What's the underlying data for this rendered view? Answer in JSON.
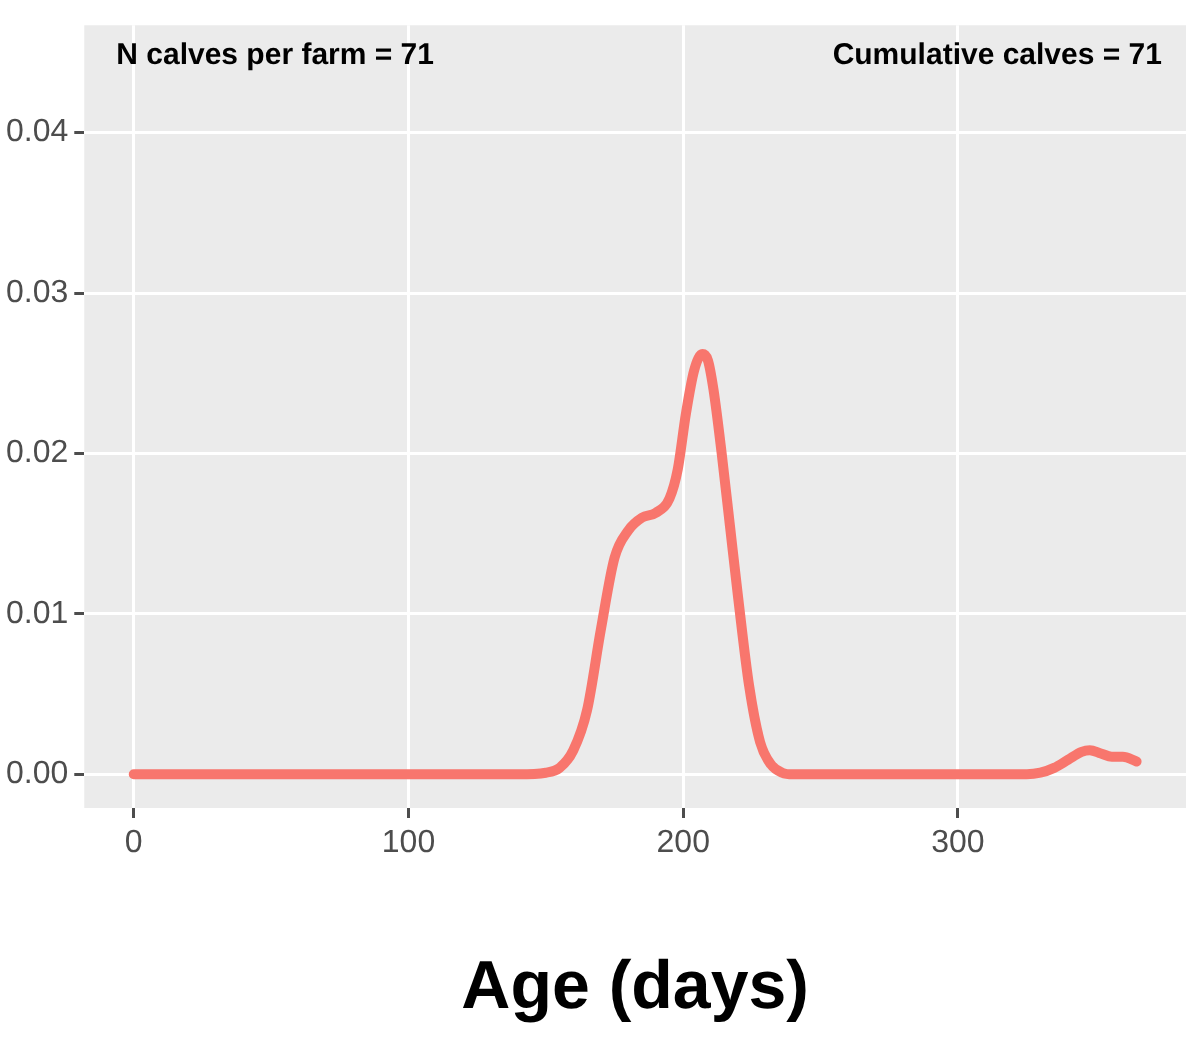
{
  "chart_data": {
    "type": "line",
    "xlabel": "Age (days)",
    "annotations": [
      "N calves per farm = 71",
      "Cumulative calves = 71"
    ],
    "series": [
      {
        "color": "#f8766d",
        "x": [
          0,
          50,
          100,
          140,
          150,
          155,
          160,
          165,
          170,
          175,
          180,
          185,
          190,
          195,
          198,
          201,
          204,
          207,
          209,
          211,
          214,
          217,
          220,
          224,
          228,
          232,
          236,
          240,
          260,
          300,
          325,
          330,
          335,
          340,
          345,
          348,
          352,
          356,
          360,
          365
        ],
        "values": [
          0,
          0,
          0,
          0,
          0.0001,
          0.0004,
          0.0015,
          0.004,
          0.009,
          0.0135,
          0.0152,
          0.016,
          0.0163,
          0.0172,
          0.019,
          0.0225,
          0.0252,
          0.0262,
          0.0258,
          0.024,
          0.02,
          0.0155,
          0.011,
          0.0055,
          0.002,
          0.0006,
          0.0001,
          0,
          0,
          0,
          0,
          0.0001,
          0.0004,
          0.0009,
          0.0014,
          0.0015,
          0.0013,
          0.0011,
          0.0011,
          0.0008
        ]
      }
    ],
    "xlim": [
      -18,
      383
    ],
    "xticks": [
      0,
      100,
      200,
      300
    ],
    "ylim": [
      -0.0021,
      0.0467
    ],
    "yticks": [
      {
        "value": 0,
        "label": "0.00"
      },
      {
        "value": 0.01,
        "label": "0.01"
      },
      {
        "value": 0.02,
        "label": "0.02"
      },
      {
        "value": 0.03,
        "label": "0.03"
      },
      {
        "value": 0.04,
        "label": "0.04"
      }
    ],
    "grid": true,
    "legend": false,
    "marker": "none",
    "line_style": "solid"
  }
}
